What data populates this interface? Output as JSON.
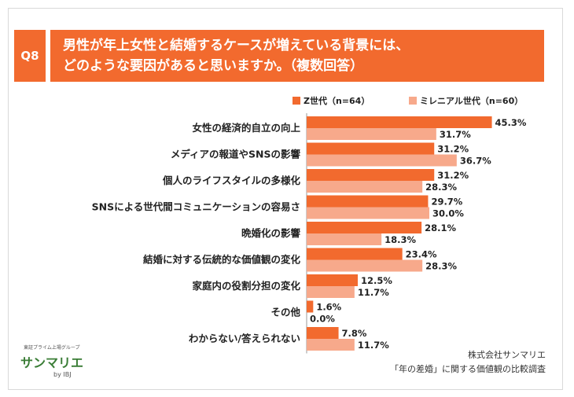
{
  "question": {
    "number": "Q8",
    "title": "男性が年上女性と結婚するケースが増えている背景には、\nどのような要因があると思いますか。（複数回答）"
  },
  "credit": {
    "line1": "株式会社サンマリエ",
    "line2": "「年の差婚」に関する価値観の比較調査"
  },
  "logo": {
    "tagline": "東証プライム上場グループ",
    "name": "サンマリエ",
    "by": "by IBJ"
  },
  "colors": {
    "primary": "#f26a2e",
    "secondary": "#f7a98b"
  },
  "chart_data": {
    "type": "bar",
    "orientation": "horizontal",
    "categories": [
      "女性の経済的自立の向上",
      "メディアの報道やSNSの影響",
      "個人のライフスタイルの多様化",
      "SNSによる世代間コミュニケーションの容易さ",
      "晩婚化の影響",
      "結婚に対する伝統的な価値観の変化",
      "家庭内の役割分担の変化",
      "その他",
      "わからない/答えられない"
    ],
    "series": [
      {
        "name": "Z世代（n=64）",
        "color": "#f26a2e",
        "values": [
          45.3,
          31.2,
          31.2,
          29.7,
          28.1,
          23.4,
          12.5,
          1.6,
          7.8
        ],
        "labels": [
          "45.3%",
          "31.2%",
          "31.2%",
          "29.7%",
          "28.1%",
          "23.4%",
          "12.5%",
          "1.6%",
          "7.8%"
        ]
      },
      {
        "name": "ミレニアル世代（n=60）",
        "color": "#f7a98b",
        "values": [
          31.7,
          36.7,
          28.3,
          30.0,
          18.3,
          28.3,
          11.7,
          0.0,
          11.7
        ],
        "labels": [
          "31.7%",
          "36.7%",
          "28.3%",
          "30.0%",
          "18.3%",
          "28.3%",
          "11.7%",
          "0.0%",
          "11.7%"
        ]
      }
    ],
    "xlim": [
      0,
      50
    ],
    "legend": "top-right"
  }
}
